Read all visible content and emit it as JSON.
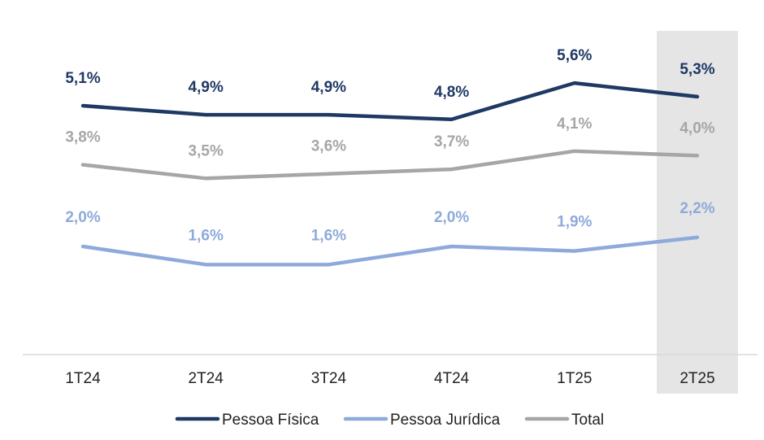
{
  "chart_data": {
    "type": "line",
    "title": "",
    "xlabel": "",
    "ylabel": "",
    "categories": [
      "1T24",
      "2T24",
      "3T24",
      "4T24",
      "1T25",
      "2T25"
    ],
    "highlight_category": "2T25",
    "ylim": [
      0,
      6.5
    ],
    "grid": false,
    "legend_position": "bottom",
    "series": [
      {
        "name": "Pessoa Física",
        "color": "#1f3864",
        "values": [
          5.1,
          4.9,
          4.9,
          4.8,
          5.6,
          5.3
        ],
        "labels": [
          "5,1%",
          "4,9%",
          "4,9%",
          "4,8%",
          "5,6%",
          "5,3%"
        ]
      },
      {
        "name": "Pessoa Jurídica",
        "color": "#8eaadb",
        "values": [
          2.0,
          1.6,
          1.6,
          2.0,
          1.9,
          2.2
        ],
        "labels": [
          "2,0%",
          "1,6%",
          "1,6%",
          "2,0%",
          "1,9%",
          "2,2%"
        ]
      },
      {
        "name": "Total",
        "color": "#a6a6a6",
        "values": [
          3.8,
          3.5,
          3.6,
          3.7,
          4.1,
          4.0
        ],
        "labels": [
          "3,8%",
          "3,5%",
          "3,6%",
          "3,7%",
          "4,1%",
          "4,0%"
        ]
      }
    ]
  },
  "colors": {
    "highlight_band": "#e5e5e5",
    "axis_line": "#d9d9d9",
    "tick_text": "#222222"
  }
}
